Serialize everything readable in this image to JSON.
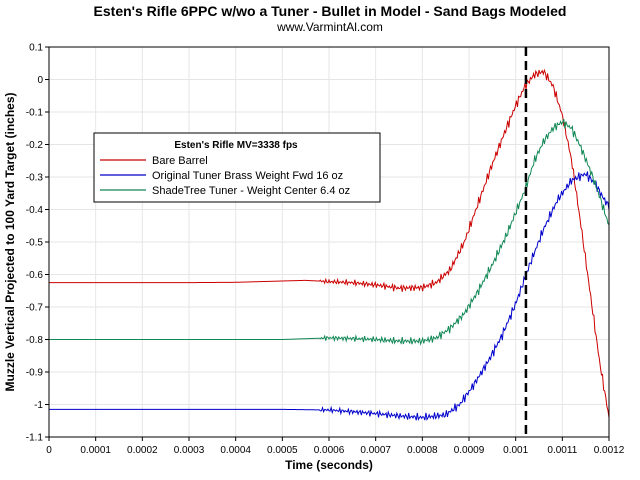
{
  "chart_data": {
    "type": "line",
    "title": "Esten's Rifle 6PPC w/wo a Tuner - Bullet in Model - Sand Bags Modeled",
    "subtitle": "www.VarmintAl.com",
    "xlabel": "Time (seconds)",
    "ylabel": "Muzzle Vertical Projected to 100 Yard Target (inches)",
    "xlim": [
      0,
      0.0012
    ],
    "ylim": [
      -1.1,
      0.1
    ],
    "x_ticks": [
      "0",
      "0.0001",
      "0.0002",
      "0.0003",
      "0.0004",
      "0.0005",
      "0.0006",
      "0.0007",
      "0.0008",
      "0.0009",
      "0.001",
      "0.0011",
      "0.0012"
    ],
    "y_ticks": [
      "0.1",
      "0",
      "-0.1",
      "-0.2",
      "-0.3",
      "-0.4",
      "-0.5",
      "-0.6",
      "-0.7",
      "-0.8",
      "-0.9",
      "-1",
      "-1.1"
    ],
    "grid": true,
    "legend": {
      "title": "Esten's Rifle MV=3338 fps",
      "placement": "upper-left"
    },
    "vertical_marker": {
      "x": 0.001022,
      "style": "dashed",
      "color": "#000000"
    },
    "series": [
      {
        "name": "Bare Barrel",
        "color": "#cc0000",
        "points": [
          [
            0,
            -0.625
          ],
          [
            0.0001,
            -0.625
          ],
          [
            0.0002,
            -0.625
          ],
          [
            0.0003,
            -0.625
          ],
          [
            0.0004,
            -0.624
          ],
          [
            0.00045,
            -0.622
          ],
          [
            0.0005,
            -0.62
          ],
          [
            0.00055,
            -0.618
          ],
          [
            0.0006,
            -0.622
          ],
          [
            0.00065,
            -0.625
          ],
          [
            0.0007,
            -0.632
          ],
          [
            0.00075,
            -0.642
          ],
          [
            0.0008,
            -0.64
          ],
          [
            0.00083,
            -0.625
          ],
          [
            0.00086,
            -0.585
          ],
          [
            0.00089,
            -0.5
          ],
          [
            0.00092,
            -0.38
          ],
          [
            0.00095,
            -0.26
          ],
          [
            0.00098,
            -0.15
          ],
          [
            0.001,
            -0.08
          ],
          [
            0.00102,
            -0.02
          ],
          [
            0.00104,
            0.015
          ],
          [
            0.00106,
            0.025
          ],
          [
            0.00108,
            -0.02
          ],
          [
            0.0011,
            -0.11
          ],
          [
            0.00112,
            -0.25
          ],
          [
            0.00114,
            -0.45
          ],
          [
            0.00116,
            -0.66
          ],
          [
            0.00118,
            -0.87
          ],
          [
            0.0012,
            -1.04
          ]
        ]
      },
      {
        "name": "Original Tuner Brass Weight Fwd 16 oz",
        "color": "#0000cc",
        "points": [
          [
            0,
            -1.015
          ],
          [
            0.0001,
            -1.015
          ],
          [
            0.0002,
            -1.015
          ],
          [
            0.0003,
            -1.015
          ],
          [
            0.0004,
            -1.015
          ],
          [
            0.0005,
            -1.015
          ],
          [
            0.0006,
            -1.017
          ],
          [
            0.00065,
            -1.022
          ],
          [
            0.0007,
            -1.028
          ],
          [
            0.00075,
            -1.035
          ],
          [
            0.0008,
            -1.04
          ],
          [
            0.00085,
            -1.032
          ],
          [
            0.00088,
            -1.0
          ],
          [
            0.00091,
            -0.94
          ],
          [
            0.00094,
            -0.87
          ],
          [
            0.00097,
            -0.79
          ],
          [
            0.001,
            -0.69
          ],
          [
            0.00103,
            -0.57
          ],
          [
            0.00106,
            -0.46
          ],
          [
            0.00109,
            -0.37
          ],
          [
            0.00112,
            -0.31
          ],
          [
            0.00115,
            -0.29
          ],
          [
            0.00117,
            -0.32
          ],
          [
            0.00119,
            -0.37
          ],
          [
            0.0012,
            -0.39
          ]
        ]
      },
      {
        "name": "ShadeTree Tuner - Weight Center 6.4 oz",
        "color": "#118855",
        "points": [
          [
            0,
            -0.8
          ],
          [
            0.0001,
            -0.8
          ],
          [
            0.0002,
            -0.8
          ],
          [
            0.0003,
            -0.8
          ],
          [
            0.0004,
            -0.8
          ],
          [
            0.0005,
            -0.8
          ],
          [
            0.0006,
            -0.795
          ],
          [
            0.00065,
            -0.797
          ],
          [
            0.0007,
            -0.8
          ],
          [
            0.00075,
            -0.805
          ],
          [
            0.0008,
            -0.805
          ],
          [
            0.00083,
            -0.795
          ],
          [
            0.00086,
            -0.765
          ],
          [
            0.00089,
            -0.72
          ],
          [
            0.00092,
            -0.65
          ],
          [
            0.00095,
            -0.57
          ],
          [
            0.00098,
            -0.48
          ],
          [
            0.001,
            -0.41
          ],
          [
            0.00102,
            -0.34
          ],
          [
            0.00104,
            -0.25
          ],
          [
            0.00106,
            -0.19
          ],
          [
            0.00108,
            -0.15
          ],
          [
            0.0011,
            -0.13
          ],
          [
            0.00112,
            -0.15
          ],
          [
            0.00114,
            -0.21
          ],
          [
            0.00116,
            -0.28
          ],
          [
            0.00118,
            -0.36
          ],
          [
            0.0012,
            -0.45
          ]
        ]
      }
    ]
  }
}
